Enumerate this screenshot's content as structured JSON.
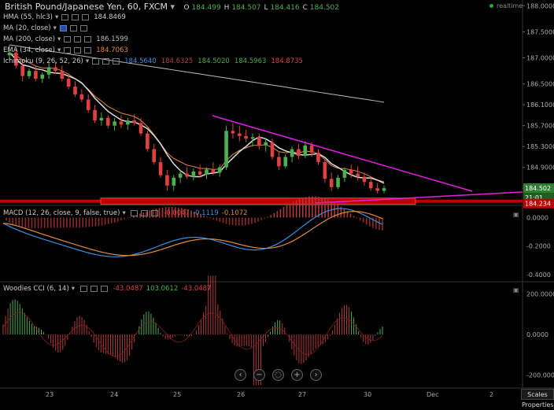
{
  "header": {
    "title": "British Pound/Japanese Yen, 60, FXCM",
    "ohlc": [
      {
        "k": "O",
        "v": "184.499"
      },
      {
        "k": "H",
        "v": "184.507"
      },
      {
        "k": "L",
        "v": "184.416"
      },
      {
        "k": "C",
        "v": "184.502"
      }
    ],
    "realtime": "realtime"
  },
  "indicators": [
    {
      "label": "HMA (55, hlc3)",
      "values": [
        "184.8469"
      ],
      "colors": [
        "#cccccc"
      ]
    },
    {
      "label": "MA (20, close)",
      "values": [],
      "colors": []
    },
    {
      "label": "MA (200, close)",
      "values": [
        "186.1599"
      ],
      "colors": [
        "#bbbbbb"
      ]
    },
    {
      "label": "EMA (34, close)",
      "values": [
        "184.7063"
      ],
      "colors": [
        "#e08a3c"
      ]
    },
    {
      "label": "Ichimoku (9, 26, 52, 26)",
      "values": [
        "184.5640",
        "184.6325",
        "184.5020",
        "184.5963",
        "184.8735"
      ],
      "colors": [
        "#3a8fe0",
        "#b04040",
        "#4caf50",
        "#4caf50",
        "#e04040"
      ]
    }
  ],
  "price_axis": [
    "188.0000",
    "187.5000",
    "187.0000",
    "186.5000",
    "186.1000",
    "185.7000",
    "185.3000",
    "184.9000",
    "184.5000"
  ],
  "price_badges": {
    "last": "184.502",
    "countdown": "21:01",
    "support": "184.234"
  },
  "macd": {
    "title": "MACD (12, 26, close, 9, false, true)",
    "values": [
      "-0.0047",
      "-0.1119",
      "-0.1072"
    ],
    "colors": [
      "#e04040",
      "#3a8fe0",
      "#e08a3c"
    ],
    "axis": [
      "0.0000",
      "-0.2000",
      "-0.4000"
    ]
  },
  "cci": {
    "title": "Woodies CCI (6, 14)",
    "values": [
      "-43.0487",
      "103.0612",
      "-43.0487"
    ],
    "colors": [
      "#e04040",
      "#4caf50",
      "#e04040"
    ],
    "axis": [
      "200.0000",
      "0.0000",
      "-200.0000"
    ]
  },
  "x_axis": [
    "23",
    "24",
    "25",
    "26",
    "27",
    "30",
    "Dec",
    "2"
  ],
  "nav_buttons": [
    {
      "name": "scroll-left",
      "glyph": "‹"
    },
    {
      "name": "zoom-out",
      "glyph": "−"
    },
    {
      "name": "reset",
      "glyph": "◌"
    },
    {
      "name": "zoom-in",
      "glyph": "+"
    },
    {
      "name": "scroll-right",
      "glyph": "›"
    }
  ],
  "scales_label": "Scales Properties",
  "colors": {
    "up": "#4caf50",
    "down": "#e04040",
    "trend": "#e020e0",
    "support": "#c00000",
    "ma200": "#bbbbbb",
    "ema": "#e08a3c",
    "hma": "#dddddd"
  },
  "chart_data": [
    {
      "type": "candlestick",
      "x": [
        "23",
        "24",
        "25",
        "26",
        "27",
        "30"
      ],
      "ylim": [
        184.2,
        188.05
      ],
      "ohlc": [
        [
          187.05,
          187.25,
          186.95,
          187.1
        ],
        [
          187.1,
          187.2,
          186.8,
          186.85
        ],
        [
          186.85,
          186.95,
          186.55,
          186.65
        ],
        [
          186.65,
          186.8,
          186.6,
          186.75
        ],
        [
          186.75,
          186.85,
          186.55,
          186.6
        ],
        [
          186.6,
          186.72,
          186.52,
          186.68
        ],
        [
          186.68,
          186.9,
          186.6,
          186.82
        ],
        [
          186.82,
          186.92,
          186.7,
          186.75
        ],
        [
          186.75,
          186.85,
          186.55,
          186.6
        ],
        [
          186.6,
          186.7,
          186.4,
          186.45
        ],
        [
          186.45,
          186.55,
          186.25,
          186.3
        ],
        [
          186.3,
          186.4,
          186.15,
          186.2
        ],
        [
          186.2,
          186.3,
          185.95,
          186.0
        ],
        [
          186.0,
          186.1,
          185.75,
          185.8
        ],
        [
          185.8,
          185.95,
          185.7,
          185.85
        ],
        [
          185.85,
          185.9,
          185.65,
          185.7
        ],
        [
          185.7,
          185.85,
          185.6,
          185.78
        ],
        [
          185.78,
          185.9,
          185.65,
          185.72
        ],
        [
          185.72,
          185.85,
          185.62,
          185.8
        ],
        [
          185.8,
          185.92,
          185.7,
          185.75
        ],
        [
          185.75,
          185.85,
          185.5,
          185.55
        ],
        [
          185.55,
          185.6,
          185.2,
          185.25
        ],
        [
          185.25,
          185.35,
          184.95,
          185.0
        ],
        [
          185.0,
          185.1,
          184.7,
          184.75
        ],
        [
          184.75,
          184.85,
          184.45,
          184.55
        ],
        [
          184.55,
          184.75,
          184.45,
          184.7
        ],
        [
          184.7,
          184.85,
          184.6,
          184.78
        ],
        [
          184.78,
          184.9,
          184.68,
          184.72
        ],
        [
          184.72,
          184.88,
          184.65,
          184.82
        ],
        [
          184.82,
          184.95,
          184.7,
          184.76
        ],
        [
          184.76,
          184.9,
          184.68,
          184.86
        ],
        [
          184.86,
          185.0,
          184.75,
          184.8
        ],
        [
          184.8,
          184.95,
          184.72,
          184.9
        ],
        [
          184.9,
          185.7,
          184.85,
          185.6
        ],
        [
          185.6,
          185.75,
          185.45,
          185.55
        ],
        [
          185.55,
          185.7,
          185.4,
          185.5
        ],
        [
          185.5,
          185.62,
          185.38,
          185.45
        ],
        [
          185.45,
          185.55,
          185.3,
          185.48
        ],
        [
          185.48,
          185.55,
          185.25,
          185.32
        ],
        [
          185.32,
          185.45,
          185.2,
          185.38
        ],
        [
          185.38,
          185.45,
          185.05,
          185.1
        ],
        [
          185.1,
          185.2,
          184.85,
          184.92
        ],
        [
          184.92,
          185.15,
          184.88,
          185.1
        ],
        [
          185.1,
          185.3,
          185.0,
          185.25
        ],
        [
          185.25,
          185.35,
          185.05,
          185.12
        ],
        [
          185.12,
          185.4,
          185.08,
          185.32
        ],
        [
          185.32,
          185.38,
          185.1,
          185.18
        ],
        [
          185.18,
          185.25,
          184.95,
          185.0
        ],
        [
          185.0,
          185.05,
          184.6,
          184.68
        ],
        [
          184.68,
          184.8,
          184.45,
          184.52
        ],
        [
          184.52,
          184.75,
          184.48,
          184.7
        ],
        [
          184.7,
          184.9,
          184.62,
          184.85
        ],
        [
          184.85,
          184.95,
          184.7,
          184.78
        ],
        [
          184.78,
          184.92,
          184.65,
          184.72
        ],
        [
          184.72,
          184.8,
          184.55,
          184.62
        ],
        [
          184.62,
          184.7,
          184.45,
          184.5
        ],
        [
          184.5,
          184.6,
          184.4,
          184.45
        ],
        [
          184.45,
          184.55,
          184.4,
          184.5
        ]
      ]
    },
    {
      "type": "line",
      "name": "MACD",
      "ylim": [
        -0.45,
        0.08
      ]
    },
    {
      "type": "bar",
      "name": "Woodies CCI",
      "ylim": [
        -260,
        260
      ]
    }
  ]
}
